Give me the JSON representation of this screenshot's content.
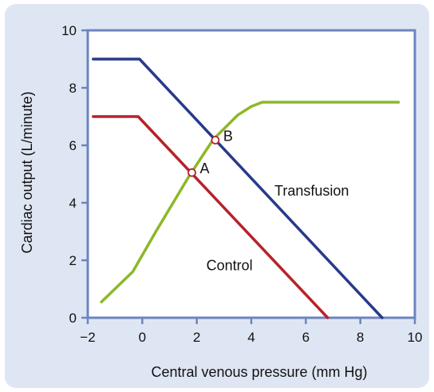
{
  "chart_data": {
    "type": "line",
    "title": "",
    "xlabel": "Central venous pressure (mm Hg)",
    "ylabel": "Cardiac output (L/minute)",
    "xlim": [
      -2,
      10
    ],
    "ylim": [
      0,
      10
    ],
    "x_ticks": [
      -2,
      0,
      2,
      4,
      6,
      8,
      10
    ],
    "y_ticks": [
      0,
      2,
      4,
      6,
      8,
      10
    ],
    "x_tick_labels": [
      "−2",
      "0",
      "2",
      "4",
      "6",
      "8",
      "10"
    ],
    "y_tick_labels": [
      "0",
      "2",
      "4",
      "6",
      "8",
      "10"
    ],
    "grid": false,
    "legend": "none",
    "series": [
      {
        "color": "#8cb828",
        "points": [
          [
            -1.5,
            0.55
          ],
          [
            -0.35,
            1.6
          ],
          [
            0.5,
            3.0
          ],
          [
            1.7,
            4.9
          ],
          [
            2.6,
            6.2
          ],
          [
            3.5,
            7.05
          ],
          [
            4.0,
            7.35
          ],
          [
            4.4,
            7.5
          ],
          [
            9.4,
            7.5
          ]
        ]
      },
      {
        "color": "#b8222a",
        "points": [
          [
            -1.8,
            7.0
          ],
          [
            -0.15,
            7.0
          ],
          [
            6.8,
            0.0
          ]
        ]
      },
      {
        "color": "#283a8a",
        "points": [
          [
            -1.8,
            9.0
          ],
          [
            -0.1,
            9.0
          ],
          [
            8.8,
            0.0
          ]
        ]
      }
    ],
    "annotations": [
      {
        "text": "Transfusion",
        "x": 4.85,
        "y": 4.25
      },
      {
        "text": "Control",
        "x": 2.35,
        "y": 1.65
      }
    ],
    "points": [
      {
        "label": "A",
        "x": 1.82,
        "y": 5.05
      },
      {
        "label": "B",
        "x": 2.68,
        "y": 6.18
      }
    ],
    "colors": {
      "axis": "#6b85bf",
      "background": "#dfe6f3",
      "plot_area": "#ffffff",
      "point_marker": "#b8222a"
    }
  }
}
